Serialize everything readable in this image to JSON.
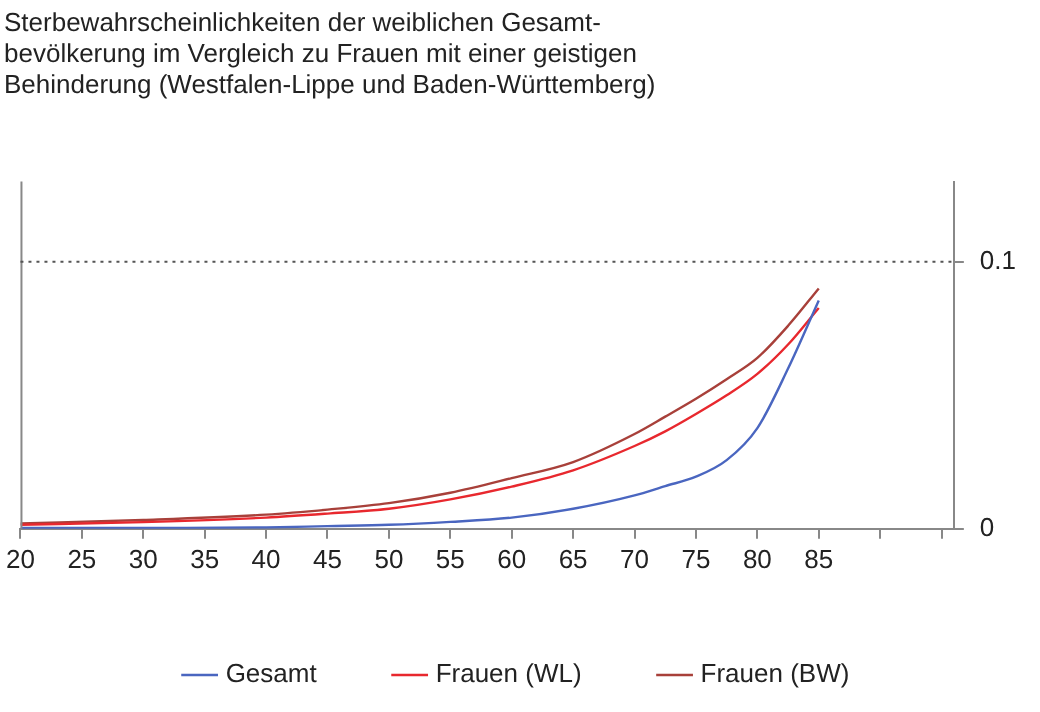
{
  "chart_data": {
    "type": "line",
    "title": "Sterbewahrscheinlichkeiten der weiblichen Gesamt-\nbevölkerung im Vergleich zu Frauen mit einer geistigen\nBehinderung (Westfalen-Lippe und Baden-Württemberg)",
    "x": [
      20,
      30,
      40,
      45,
      50,
      55,
      60,
      65,
      70,
      72.5,
      75,
      77.5,
      80,
      82.5,
      85
    ],
    "series": [
      {
        "name": "Gesamt",
        "color": "#4a66c0",
        "values": [
          0.0003,
          0.0003,
          0.0005,
          0.001,
          0.0015,
          0.0026,
          0.0042,
          0.0075,
          0.0125,
          0.016,
          0.0195,
          0.0257,
          0.0377,
          0.06,
          0.0855
        ]
      },
      {
        "name": "Frauen (WL)",
        "color": "#e8282e",
        "values": [
          0.0015,
          0.0025,
          0.0042,
          0.0057,
          0.0075,
          0.011,
          0.0158,
          0.0219,
          0.031,
          0.0365,
          0.043,
          0.05,
          0.058,
          0.069,
          0.0827
        ]
      },
      {
        "name": "Frauen (BW)",
        "color": "#a8403a",
        "values": [
          0.002,
          0.0033,
          0.0053,
          0.0072,
          0.0096,
          0.0135,
          0.019,
          0.025,
          0.0355,
          0.042,
          0.0487,
          0.056,
          0.064,
          0.076,
          0.09
        ]
      }
    ],
    "xlim": [
      20,
      96
    ],
    "xticks": [
      20,
      25,
      30,
      35,
      40,
      45,
      50,
      55,
      60,
      65,
      70,
      75,
      80,
      85,
      {
        "value": 90,
        "label": null
      },
      {
        "value": 95,
        "label": null
      }
    ],
    "ylim": [
      0,
      0.13
    ],
    "yticks": [
      0,
      0.1
    ],
    "ref_lines": [
      {
        "axis": "y",
        "value": 0.1,
        "color": "#555555",
        "line_style": "dotted"
      }
    ],
    "grid": false,
    "legend": "bottom",
    "marker": "none",
    "line_style": "solid"
  }
}
